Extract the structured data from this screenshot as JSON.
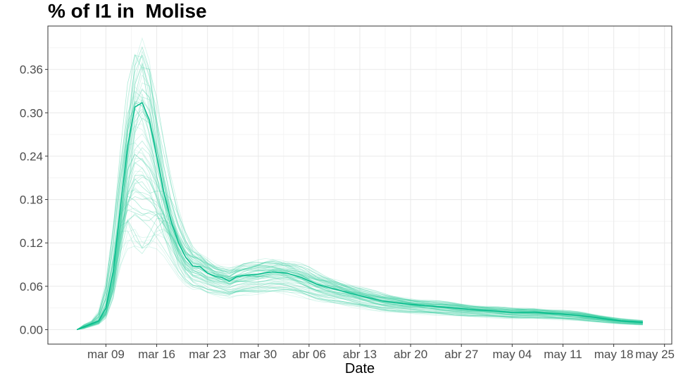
{
  "chart_data": {
    "type": "line",
    "title": "% of I1 in  Molise",
    "xlabel": "Date",
    "ylabel": "",
    "x_start": "2020-03-05",
    "x_end": "2020-05-22",
    "xlim": [
      "2020-03-01",
      "2020-05-26"
    ],
    "ylim": [
      -0.02,
      0.42
    ],
    "x_ticks": [
      {
        "date": "2020-03-09",
        "label": "mar 09"
      },
      {
        "date": "2020-03-16",
        "label": "mar 16"
      },
      {
        "date": "2020-03-23",
        "label": "mar 23"
      },
      {
        "date": "2020-03-30",
        "label": "mar 30"
      },
      {
        "date": "2020-04-06",
        "label": "abr 06"
      },
      {
        "date": "2020-04-13",
        "label": "abr 13"
      },
      {
        "date": "2020-04-20",
        "label": "abr 20"
      },
      {
        "date": "2020-04-27",
        "label": "abr 27"
      },
      {
        "date": "2020-05-04",
        "label": "may 04"
      },
      {
        "date": "2020-05-11",
        "label": "may 11"
      },
      {
        "date": "2020-05-18",
        "label": "may 18"
      },
      {
        "date": "2020-05-25",
        "label": "may 25"
      }
    ],
    "y_ticks": [
      0.0,
      0.06,
      0.12,
      0.18,
      0.24,
      0.3,
      0.36
    ],
    "y_tick_labels": [
      "0.00",
      "0.06",
      "0.12",
      "0.18",
      "0.24",
      "0.30",
      "0.36"
    ],
    "grid": true,
    "colors": {
      "main": "#00ba8a",
      "ensemble": "#3ecfa3",
      "panel_border": "#333333",
      "grid": "#ebebeb"
    },
    "main_series": {
      "points": [
        [
          "2020-03-05",
          0.0
        ],
        [
          "2020-03-07",
          0.008
        ],
        [
          "2020-03-08",
          0.012
        ],
        [
          "2020-03-09",
          0.03
        ],
        [
          "2020-03-10",
          0.08
        ],
        [
          "2020-03-11",
          0.17
        ],
        [
          "2020-03-12",
          0.255
        ],
        [
          "2020-03-13",
          0.308
        ],
        [
          "2020-03-14",
          0.314
        ],
        [
          "2020-03-15",
          0.29
        ],
        [
          "2020-03-16",
          0.24
        ],
        [
          "2020-03-17",
          0.19
        ],
        [
          "2020-03-18",
          0.15
        ],
        [
          "2020-03-19",
          0.12
        ],
        [
          "2020-03-20",
          0.1
        ],
        [
          "2020-03-21",
          0.088
        ],
        [
          "2020-03-22",
          0.087
        ],
        [
          "2020-03-23",
          0.078
        ],
        [
          "2020-03-24",
          0.074
        ],
        [
          "2020-03-25",
          0.072
        ],
        [
          "2020-03-26",
          0.067
        ],
        [
          "2020-03-27",
          0.073
        ],
        [
          "2020-03-28",
          0.075
        ],
        [
          "2020-03-30",
          0.077
        ],
        [
          "2020-04-01",
          0.08
        ],
        [
          "2020-04-03",
          0.078
        ],
        [
          "2020-04-05",
          0.072
        ],
        [
          "2020-04-07",
          0.063
        ],
        [
          "2020-04-10",
          0.055
        ],
        [
          "2020-04-13",
          0.047
        ],
        [
          "2020-04-16",
          0.04
        ],
        [
          "2020-04-19",
          0.036
        ],
        [
          "2020-04-22",
          0.033
        ],
        [
          "2020-04-25",
          0.031
        ],
        [
          "2020-04-28",
          0.028
        ],
        [
          "2020-05-01",
          0.026
        ],
        [
          "2020-05-04",
          0.024
        ],
        [
          "2020-05-07",
          0.024
        ],
        [
          "2020-05-10",
          0.022
        ],
        [
          "2020-05-13",
          0.02
        ],
        [
          "2020-05-16",
          0.016
        ],
        [
          "2020-05-19",
          0.012
        ],
        [
          "2020-05-22",
          0.01
        ]
      ]
    }
  }
}
